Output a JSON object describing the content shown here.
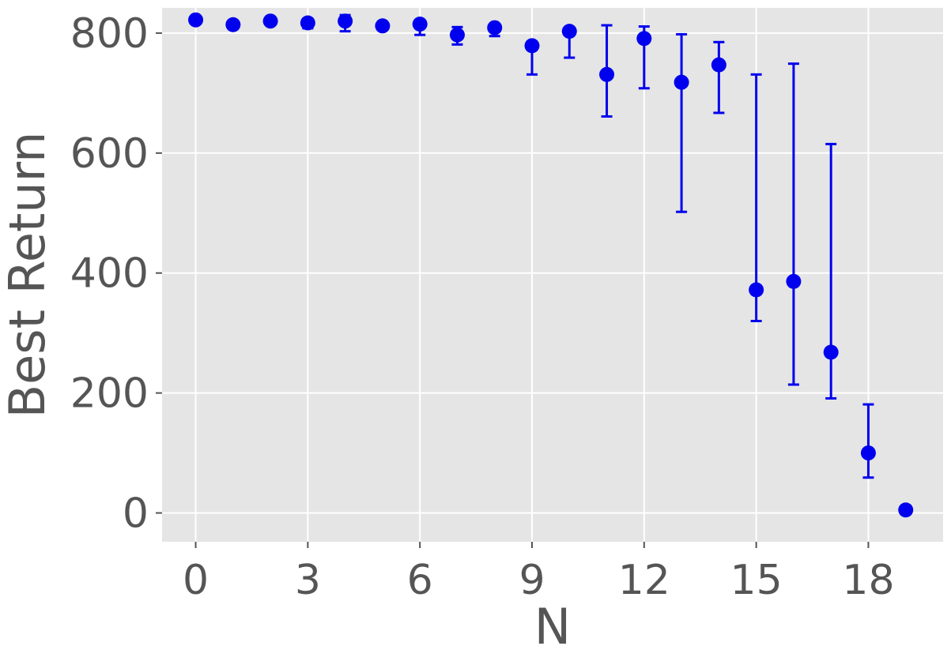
{
  "chart_data": {
    "type": "scatter",
    "title": "",
    "xlabel": "N",
    "ylabel": "Best Return",
    "xlim": [
      -0.9,
      20.0
    ],
    "ylim": [
      -48,
      842
    ],
    "x_ticks": [
      0,
      3,
      6,
      9,
      12,
      15,
      18
    ],
    "y_ticks": [
      0,
      200,
      400,
      600,
      800
    ],
    "x_tick_labels": [
      "0",
      "3",
      "6",
      "9",
      "12",
      "15",
      "18"
    ],
    "y_tick_labels": [
      "0",
      "200",
      "400",
      "600",
      "800"
    ],
    "grid": true,
    "legend": "none",
    "colors": {
      "marker": "#0000ee",
      "background": "#e5e5e5",
      "grid": "#ffffff",
      "text": "#555555"
    },
    "series": [
      {
        "points": [
          {
            "x": 0,
            "y": 822,
            "low": 822,
            "high": 822
          },
          {
            "x": 1,
            "y": 814,
            "low": 814,
            "high": 814
          },
          {
            "x": 2,
            "y": 820,
            "low": 820,
            "high": 820
          },
          {
            "x": 3,
            "y": 817,
            "low": 808,
            "high": 824
          },
          {
            "x": 4,
            "y": 820,
            "low": 803,
            "high": 830
          },
          {
            "x": 5,
            "y": 812,
            "low": 812,
            "high": 812
          },
          {
            "x": 6,
            "y": 815,
            "low": 797,
            "high": 820
          },
          {
            "x": 7,
            "y": 797,
            "low": 781,
            "high": 810
          },
          {
            "x": 8,
            "y": 809,
            "low": 795,
            "high": 814
          },
          {
            "x": 9,
            "y": 779,
            "low": 731,
            "high": 785
          },
          {
            "x": 10,
            "y": 803,
            "low": 759,
            "high": 808
          },
          {
            "x": 11,
            "y": 731,
            "low": 661,
            "high": 813
          },
          {
            "x": 12,
            "y": 791,
            "low": 708,
            "high": 811
          },
          {
            "x": 13,
            "y": 718,
            "low": 502,
            "high": 798
          },
          {
            "x": 14,
            "y": 747,
            "low": 667,
            "high": 785
          },
          {
            "x": 15,
            "y": 372,
            "low": 320,
            "high": 731
          },
          {
            "x": 16,
            "y": 386,
            "low": 214,
            "high": 749
          },
          {
            "x": 17,
            "y": 268,
            "low": 191,
            "high": 615
          },
          {
            "x": 18,
            "y": 100,
            "low": 59,
            "high": 181
          },
          {
            "x": 19,
            "y": 5,
            "low": 0,
            "high": 12
          }
        ]
      }
    ]
  }
}
